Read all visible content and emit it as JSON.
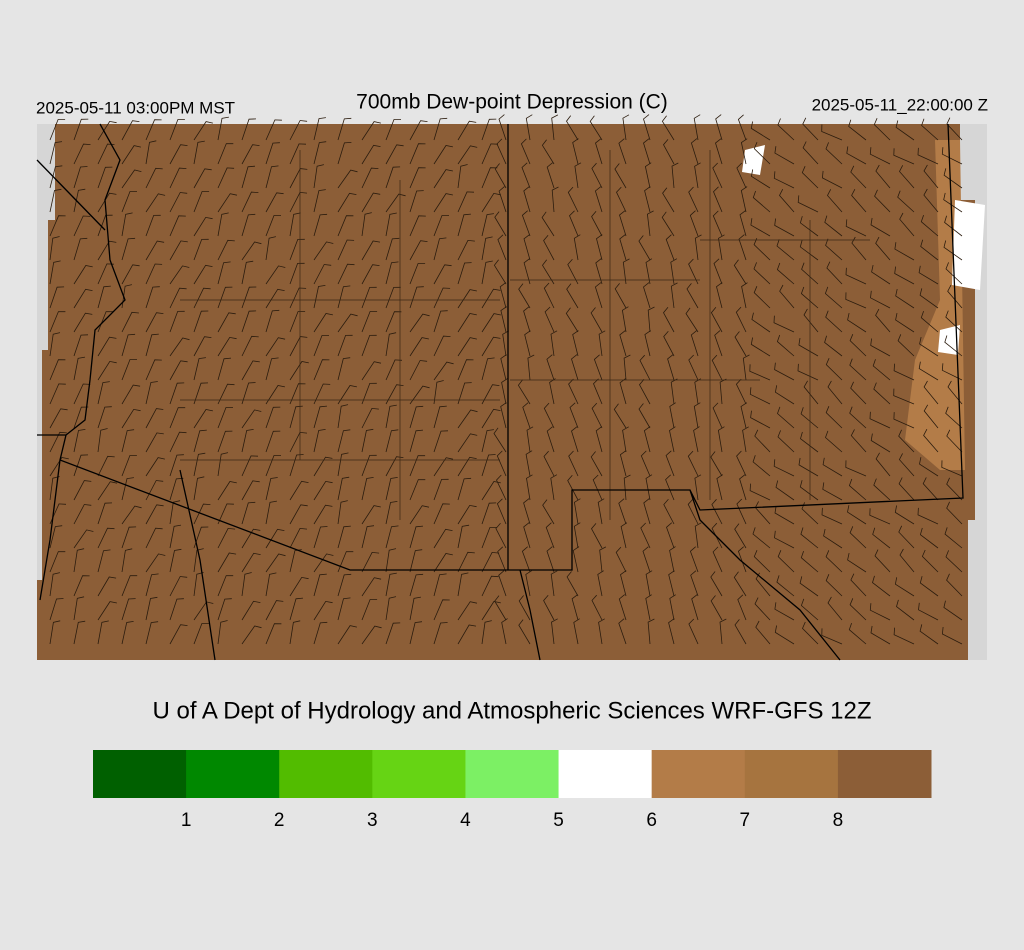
{
  "header": {
    "valid_local": "2025-05-11 03:00PM MST",
    "title": "700mb Dew-point Depression (C)",
    "valid_utc": "2025-05-11_22:00:00 Z"
  },
  "credit": "U of A Dept of Hydrology and Atmospheric Sciences WRF-GFS 12Z",
  "colorbar": {
    "colors": [
      "#006000",
      "#008800",
      "#52bc00",
      "#66d414",
      "#7cf064",
      "#ffffff",
      "#b37c48",
      "#a6743f",
      "#8c5e37"
    ],
    "ticks": [
      1,
      2,
      3,
      4,
      5,
      6,
      7,
      8
    ]
  }
}
